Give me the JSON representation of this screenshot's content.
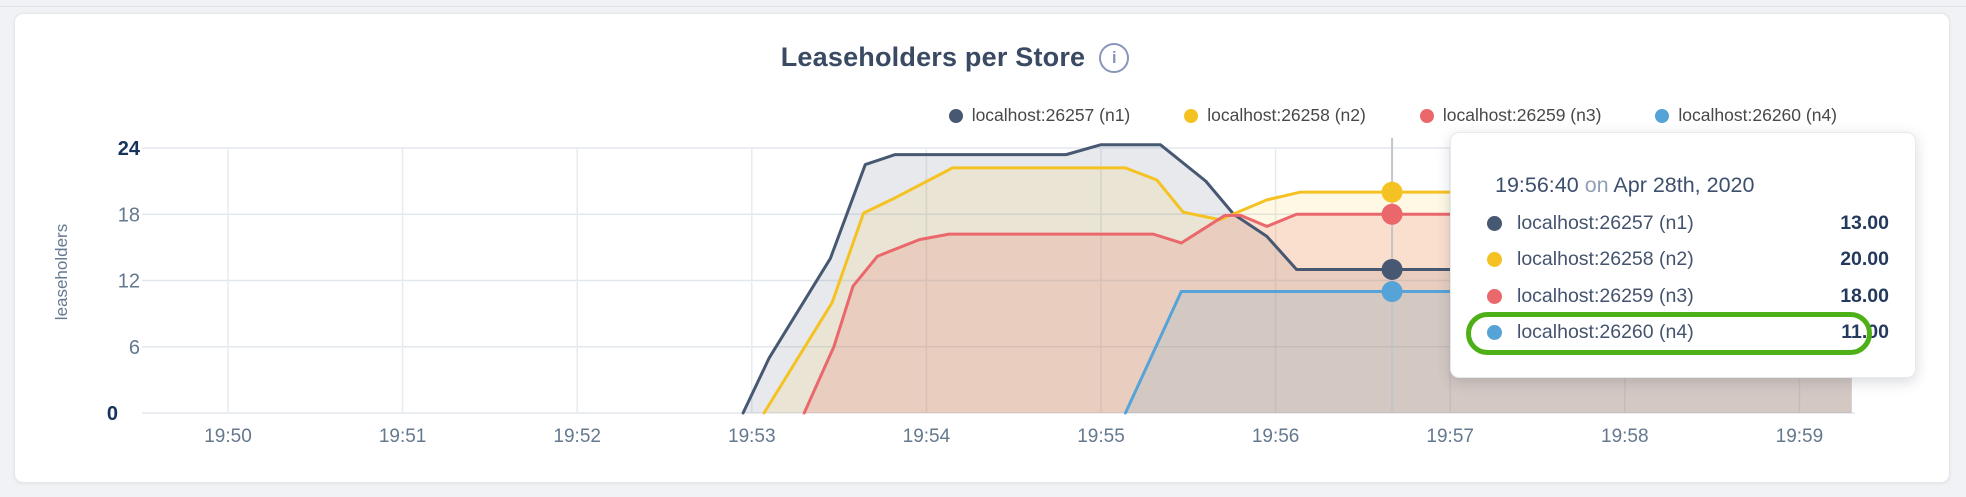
{
  "page": {
    "background": "#f0f2f5",
    "top_border": "#e2e4e8"
  },
  "card": {
    "background": "#ffffff",
    "border": "#e5e6e9"
  },
  "chart": {
    "title": "Leaseholders per Store",
    "info_icon_glyph": "i",
    "y_axis_label": "leaseholders"
  },
  "legend": {
    "items": [
      {
        "label": "localhost:26257 (n1)",
        "color": "#475872"
      },
      {
        "label": "localhost:26258 (n2)",
        "color": "#f5c223"
      },
      {
        "label": "localhost:26259 (n3)",
        "color": "#ea686c"
      },
      {
        "label": "localhost:26260 (n4)",
        "color": "#56a3d8"
      }
    ]
  },
  "chart_data": {
    "type": "area",
    "title": "Leaseholders per Store",
    "ylabel": "leaseholders",
    "xlabel": "",
    "x_unit": "minutes_after_19:00",
    "x_tick_labels": [
      "19:50",
      "19:51",
      "19:52",
      "19:53",
      "19:54",
      "19:55",
      "19:56",
      "19:57",
      "19:58",
      "19:59"
    ],
    "x_tick_minutes": [
      50,
      51,
      52,
      53,
      54,
      55,
      56,
      57,
      58,
      59
    ],
    "y_ticks": [
      0,
      6,
      12,
      18,
      24
    ],
    "y_ticks_emphasized": [
      0,
      24
    ],
    "ylim": [
      0,
      24
    ],
    "grid": true,
    "legend_position": "top-right",
    "series": [
      {
        "name": "localhost:26257 (n1)",
        "color": "#475872",
        "fill_opacity": 0.13,
        "points": [
          [
            52.95,
            0
          ],
          [
            53.1,
            5
          ],
          [
            53.45,
            14
          ],
          [
            53.65,
            22.5
          ],
          [
            53.82,
            23.4
          ],
          [
            54.8,
            23.4
          ],
          [
            55.0,
            24.3
          ],
          [
            55.34,
            24.3
          ],
          [
            55.6,
            21
          ],
          [
            55.76,
            18
          ],
          [
            55.95,
            16
          ],
          [
            56.12,
            13
          ],
          [
            59.3,
            13
          ]
        ]
      },
      {
        "name": "localhost:26258 (n2)",
        "color": "#f5c223",
        "fill_opacity": 0.12,
        "points": [
          [
            53.07,
            0
          ],
          [
            53.46,
            10
          ],
          [
            53.64,
            18.1
          ],
          [
            53.81,
            19.4
          ],
          [
            54.15,
            22.2
          ],
          [
            55.14,
            22.2
          ],
          [
            55.32,
            21.1
          ],
          [
            55.47,
            18.2
          ],
          [
            55.68,
            17.5
          ],
          [
            55.95,
            19.3
          ],
          [
            56.14,
            20
          ],
          [
            59.3,
            20
          ]
        ]
      },
      {
        "name": "localhost:26259 (n3)",
        "color": "#ea686c",
        "fill_opacity": 0.18,
        "points": [
          [
            53.3,
            0
          ],
          [
            53.47,
            6
          ],
          [
            53.58,
            11.5
          ],
          [
            53.72,
            14.2
          ],
          [
            53.96,
            15.7
          ],
          [
            54.13,
            16.2
          ],
          [
            55.3,
            16.2
          ],
          [
            55.46,
            15.4
          ],
          [
            55.63,
            17.1
          ],
          [
            55.71,
            17.9
          ],
          [
            55.8,
            17.9
          ],
          [
            55.95,
            16.9
          ],
          [
            56.12,
            18
          ],
          [
            59.3,
            18
          ]
        ]
      },
      {
        "name": "localhost:26260 (n4)",
        "color": "#56a3d8",
        "fill_opacity": 0.14,
        "points": [
          [
            55.14,
            0
          ],
          [
            55.46,
            11
          ],
          [
            59.3,
            11
          ]
        ]
      }
    ],
    "hover": {
      "time_label": "19:56:40",
      "x_minutes": 56.667,
      "values": [
        13,
        20,
        18,
        11
      ]
    }
  },
  "tooltip": {
    "time": "19:56:40",
    "conjunction": "on",
    "date": "Apr 28th, 2020",
    "rows": [
      {
        "label": "localhost:26257 (n1)",
        "value": "13.00",
        "color": "#475872"
      },
      {
        "label": "localhost:26258 (n2)",
        "value": "20.00",
        "color": "#f5c223"
      },
      {
        "label": "localhost:26259 (n3)",
        "value": "18.00",
        "color": "#ea686c"
      },
      {
        "label": "localhost:26260 (n4)",
        "value": "11.00",
        "color": "#56a3d8"
      }
    ],
    "highlight_row": 3,
    "highlight_color": "#4db016"
  }
}
